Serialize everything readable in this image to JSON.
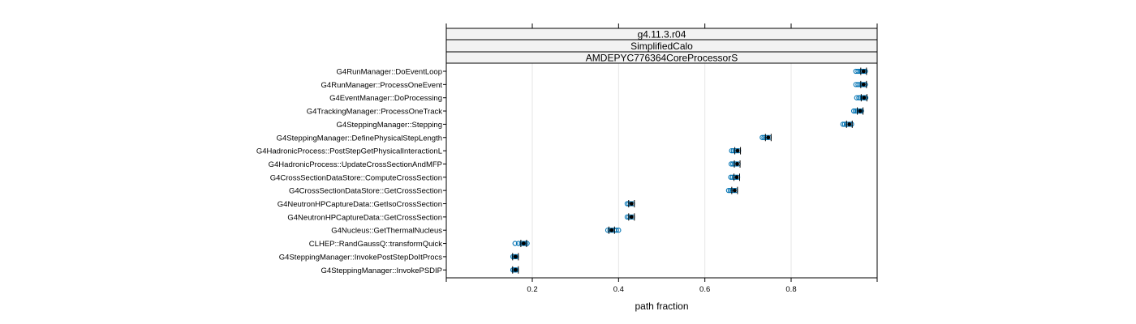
{
  "chart_data": {
    "type": "scatter",
    "strips": [
      "g4.11.3.r04",
      "SimplifiedCalo",
      "AMDEPYC776364CoreProcessorS"
    ],
    "xlabel": "path fraction",
    "ylabel": "",
    "xlim": [
      0,
      1.0
    ],
    "xticks": [
      0.2,
      0.4,
      0.6,
      0.8
    ],
    "xtick_labels": [
      "0.2",
      "0.4",
      "0.6",
      "0.8"
    ],
    "grid": true,
    "colors": {
      "point": "#0072B2",
      "median": "#000000",
      "strip_bg": "#f2f2f2",
      "grid": "#e6e6e6"
    },
    "categories": [
      "G4RunManager::DoEventLoop",
      "G4RunManager::ProcessOneEvent",
      "G4EventManager::DoProcessing",
      "G4TrackingManager::ProcessOneTrack",
      "G4SteppingManager::Stepping",
      "G4SteppingManager::DefinePhysicalStepLength",
      "G4HadronicProcess::PostStepGetPhysicalInteractionL",
      "G4HadronicProcess::UpdateCrossSectionAndMFP",
      "G4CrossSectionDataStore::ComputeCrossSection",
      "G4CrossSectionDataStore::GetCrossSection",
      "G4NeutronHPCaptureData::GetIsoCrossSection",
      "G4NeutronHPCaptureData::GetCrossSection",
      "G4Nucleus::GetThermalNucleus",
      "CLHEP::RandGaussQ::transformQuick",
      "G4SteppingManager::InvokePostStepDoItProcs",
      "G4SteppingManager::InvokePSDIP"
    ],
    "points": [
      [
        0.95,
        0.955,
        0.96,
        0.963,
        0.966,
        0.969,
        0.972
      ],
      [
        0.95,
        0.955,
        0.96,
        0.964,
        0.967,
        0.97,
        0.972
      ],
      [
        0.952,
        0.957,
        0.961,
        0.965,
        0.968,
        0.971,
        0.973
      ],
      [
        0.945,
        0.949,
        0.953,
        0.957,
        0.96,
        0.963
      ],
      [
        0.92,
        0.924,
        0.928,
        0.932,
        0.936,
        0.94
      ],
      [
        0.733,
        0.737,
        0.741,
        0.745,
        0.749
      ],
      [
        0.662,
        0.666,
        0.67,
        0.674,
        0.678
      ],
      [
        0.661,
        0.665,
        0.669,
        0.673,
        0.677
      ],
      [
        0.66,
        0.664,
        0.668,
        0.672,
        0.676
      ],
      [
        0.655,
        0.659,
        0.663,
        0.667,
        0.671
      ],
      [
        0.42,
        0.424,
        0.428,
        0.432
      ],
      [
        0.42,
        0.424,
        0.428,
        0.432
      ],
      [
        0.375,
        0.38,
        0.385,
        0.39,
        0.395,
        0.4
      ],
      [
        0.16,
        0.168,
        0.175,
        0.18,
        0.184,
        0.188
      ],
      [
        0.155,
        0.158,
        0.161,
        0.163
      ],
      [
        0.155,
        0.158,
        0.161,
        0.163
      ]
    ],
    "medians": [
      0.968,
      0.968,
      0.969,
      0.96,
      0.935,
      0.747,
      0.676,
      0.675,
      0.674,
      0.669,
      0.43,
      0.43,
      0.384,
      0.18,
      0.161,
      0.161
    ]
  }
}
